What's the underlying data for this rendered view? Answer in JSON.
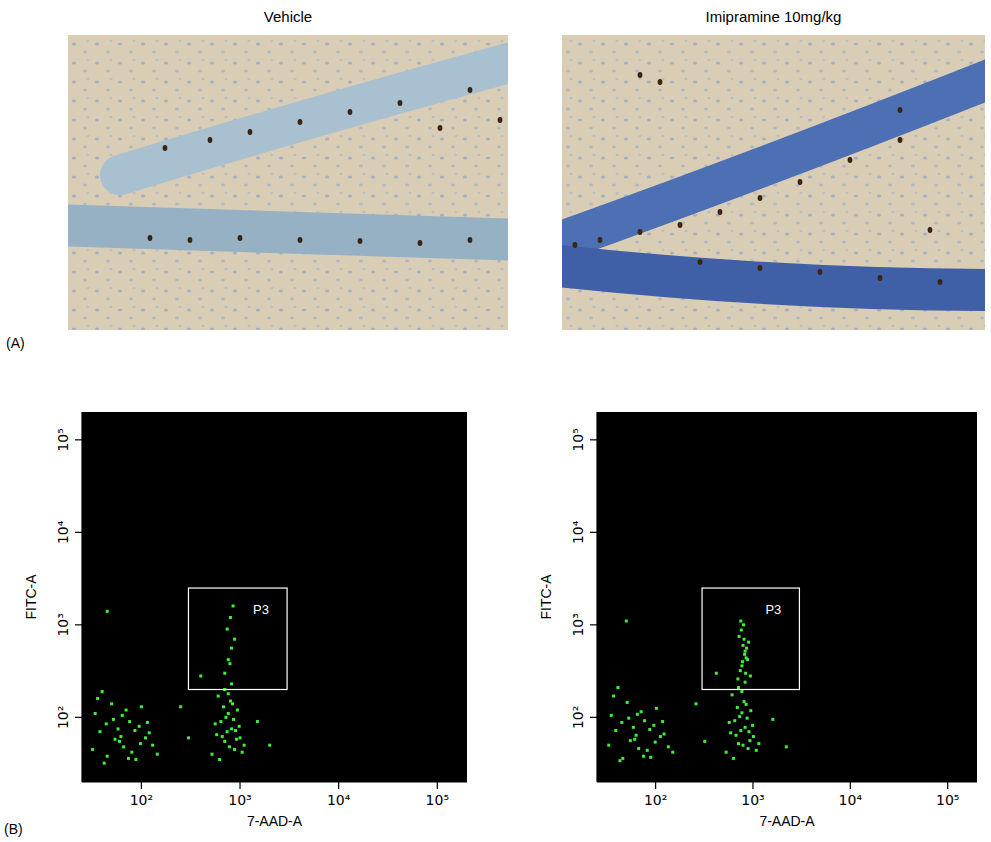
{
  "panel_a": {
    "label": "(A)",
    "titles": [
      "Vehicle",
      "Imipramine 10mg/kg"
    ]
  },
  "panel_b_label": "(B)",
  "chart_data": [
    {
      "type": "scatter",
      "x_label": "7-AAD-A",
      "y_label": "FITC-A",
      "log": true,
      "color": "#3cf03c",
      "marker": "square",
      "xlim": [
        25,
        200000
      ],
      "ylim": [
        20,
        200000
      ],
      "xticks": [
        {
          "value": 100,
          "label": "10²"
        },
        {
          "value": 1000,
          "label": "10³"
        },
        {
          "value": 10000,
          "label": "10⁴"
        },
        {
          "value": 100000,
          "label": "10⁵"
        }
      ],
      "yticks": [
        {
          "value": 100,
          "label": "10²"
        },
        {
          "value": 1000,
          "label": "10³"
        },
        {
          "value": 10000,
          "label": "10⁴"
        },
        {
          "value": 100000,
          "label": "10⁵"
        }
      ],
      "gate": {
        "label": "P3",
        "x": [
          300,
          3000
        ],
        "y": [
          200,
          2500
        ]
      },
      "x": [
        32,
        38,
        45,
        52,
        60,
        70,
        80,
        95,
        110,
        130,
        34,
        42,
        50,
        58,
        66,
        76,
        88,
        100,
        120,
        145,
        36,
        44,
        54,
        64,
        74,
        86,
        98,
        115,
        40,
        62,
        520,
        580,
        640,
        700,
        760,
        820,
        880,
        940,
        1000,
        1100,
        560,
        620,
        680,
        740,
        800,
        860,
        920,
        980,
        1050,
        600,
        660,
        720,
        780,
        840,
        900,
        700,
        760,
        820,
        700,
        760,
        820,
        880,
        740,
        800,
        790,
        850,
        300,
        1500,
        2000,
        250,
        400,
        45
      ],
      "values": [
        45,
        70,
        38,
        95,
        55,
        120,
        42,
        80,
        60,
        50,
        110,
        32,
        140,
        75,
        48,
        90,
        35,
        130,
        68,
        40,
        160,
        85,
        58,
        105,
        36,
        72,
        52,
        88,
        190,
        62,
        40,
        65,
        90,
        55,
        110,
        75,
        45,
        120,
        60,
        50,
        85,
        35,
        130,
        70,
        150,
        95,
        58,
        80,
        42,
        170,
        62,
        100,
        48,
        140,
        72,
        200,
        180,
        230,
        300,
        420,
        560,
        700,
        900,
        1200,
        380,
        1600,
        60,
        90,
        50,
        130,
        280,
        1400
      ]
    },
    {
      "type": "scatter",
      "x_label": "7-AAD-A",
      "y_label": "FITC-A",
      "log": true,
      "color": "#3cf03c",
      "marker": "square",
      "xlim": [
        25,
        200000
      ],
      "ylim": [
        20,
        200000
      ],
      "xticks": [
        {
          "value": 100,
          "label": "10²"
        },
        {
          "value": 1000,
          "label": "10³"
        },
        {
          "value": 10000,
          "label": "10⁴"
        },
        {
          "value": 100000,
          "label": "10⁵"
        }
      ],
      "yticks": [
        {
          "value": 100,
          "label": "10²"
        },
        {
          "value": 1000,
          "label": "10³"
        },
        {
          "value": 10000,
          "label": "10⁴"
        },
        {
          "value": 100000,
          "label": "10⁵"
        }
      ],
      "gate": {
        "label": "P3",
        "x": [
          300,
          3000
        ],
        "y": [
          200,
          2500
        ]
      },
      "x": [
        33,
        39,
        46,
        53,
        61,
        71,
        82,
        96,
        112,
        135,
        35,
        43,
        51,
        59,
        67,
        77,
        89,
        102,
        122,
        150,
        37,
        45,
        55,
        65,
        75,
        87,
        99,
        118,
        41,
        63,
        530,
        590,
        650,
        710,
        770,
        830,
        890,
        950,
        1010,
        1150,
        570,
        630,
        690,
        750,
        810,
        870,
        930,
        990,
        1080,
        610,
        670,
        730,
        790,
        850,
        910,
        710,
        770,
        830,
        700,
        740,
        780,
        820,
        860,
        900,
        720,
        760,
        800,
        840,
        880,
        790,
        810,
        830,
        770,
        850,
        750,
        940,
        320,
        1600,
        2200,
        260,
        420,
        50
      ],
      "values": [
        50,
        72,
        36,
        98,
        58,
        115,
        44,
        82,
        62,
        48,
        105,
        34,
        145,
        78,
        46,
        92,
        37,
        125,
        66,
        42,
        170,
        88,
        56,
        108,
        38,
        74,
        54,
        90,
        210,
        64,
        42,
        68,
        92,
        52,
        112,
        78,
        46,
        118,
        62,
        52,
        88,
        36,
        128,
        72,
        148,
        98,
        56,
        82,
        44,
        175,
        64,
        102,
        50,
        138,
        70,
        210,
        190,
        240,
        260,
        320,
        400,
        480,
        560,
        650,
        750,
        880,
        1000,
        300,
        420,
        600,
        700,
        520,
        360,
        440,
        1100,
        280,
        55,
        95,
        48,
        140,
        300,
        1100
      ]
    }
  ]
}
